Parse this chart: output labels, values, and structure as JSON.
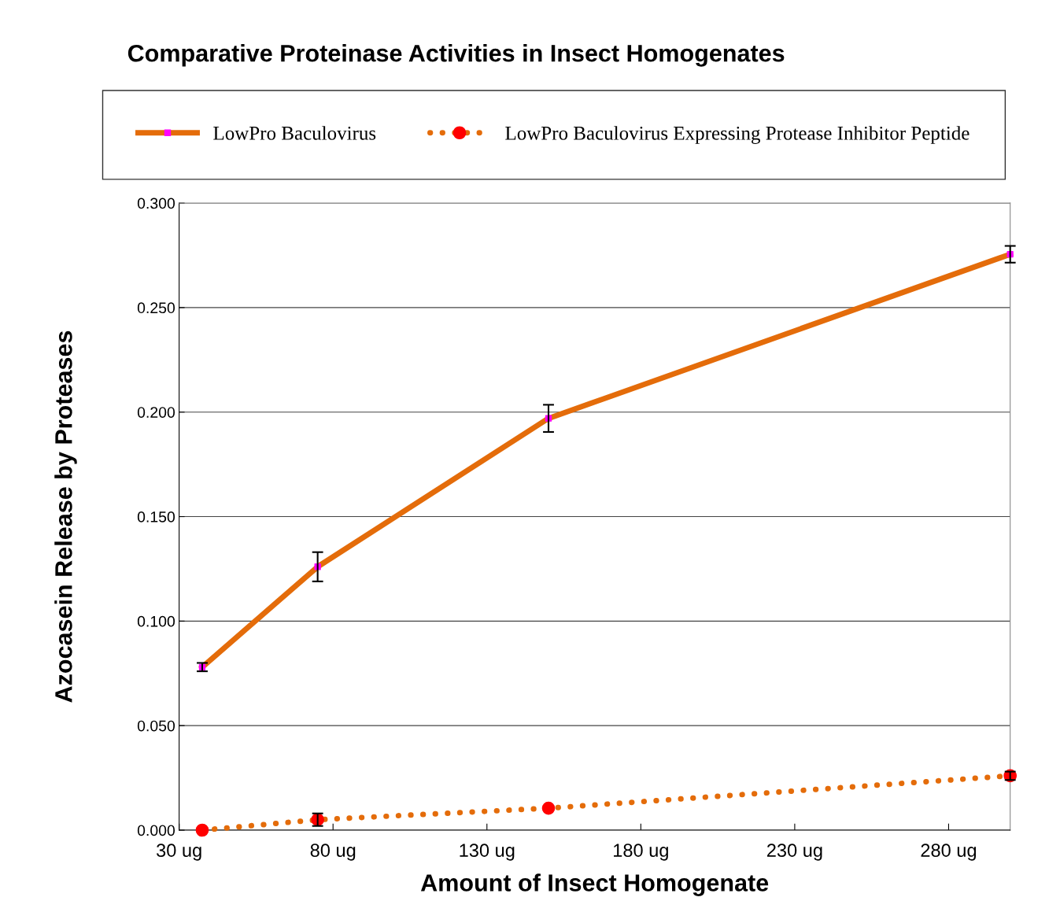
{
  "chart_data": {
    "type": "line",
    "title": "Comparative Proteinase Activities in Insect Homogenates",
    "xlabel": "Amount of Insect Homogenate",
    "ylabel": "Azocasein Release by Proteases",
    "x": [
      37.5,
      75,
      150,
      300
    ],
    "series": [
      {
        "name": "LowPro Baculovirus",
        "color": "#e46c0a",
        "marker": "square",
        "colors": [
          "#ff00ff",
          "#ff00ff",
          "#ff00ff",
          "#ff00ff"
        ],
        "line_style": "solid",
        "values": [
          0.078,
          0.126,
          0.197,
          0.2755
        ],
        "errors": [
          0.002,
          0.007,
          0.0065,
          0.004
        ]
      },
      {
        "name": "LowPro Baculovirus Expressing Protease Inhibitor Peptide",
        "color": "#e46c0a",
        "marker": "circle",
        "colors": [
          "#ff0000",
          "#ff0000",
          "#ff0000",
          "#ff0000"
        ],
        "line_style": "dotted",
        "values": [
          0.0,
          0.005,
          0.0105,
          0.026
        ],
        "errors": [
          null,
          0.003,
          null,
          0.002
        ]
      }
    ],
    "xlim": [
      30,
      300
    ],
    "xticks": [
      {
        "value": 30,
        "label": "30 ug"
      },
      {
        "value": 80,
        "label": "80 ug"
      },
      {
        "value": 130,
        "label": "130 ug"
      },
      {
        "value": 180,
        "label": "180 ug"
      },
      {
        "value": 230,
        "label": "230 ug"
      },
      {
        "value": 280,
        "label": "280 ug"
      }
    ],
    "ylim": [
      0,
      0.3
    ],
    "yticks": [
      {
        "value": 0,
        "label": "0.000"
      },
      {
        "value": 0.05,
        "label": "0.050"
      },
      {
        "value": 0.1,
        "label": "0.100"
      },
      {
        "value": 0.15,
        "label": "0.150"
      },
      {
        "value": 0.2,
        "label": "0.200"
      },
      {
        "value": 0.25,
        "label": "0.250"
      },
      {
        "value": 0.3,
        "label": "0.300"
      }
    ],
    "grid": "y",
    "legend": "top"
  }
}
